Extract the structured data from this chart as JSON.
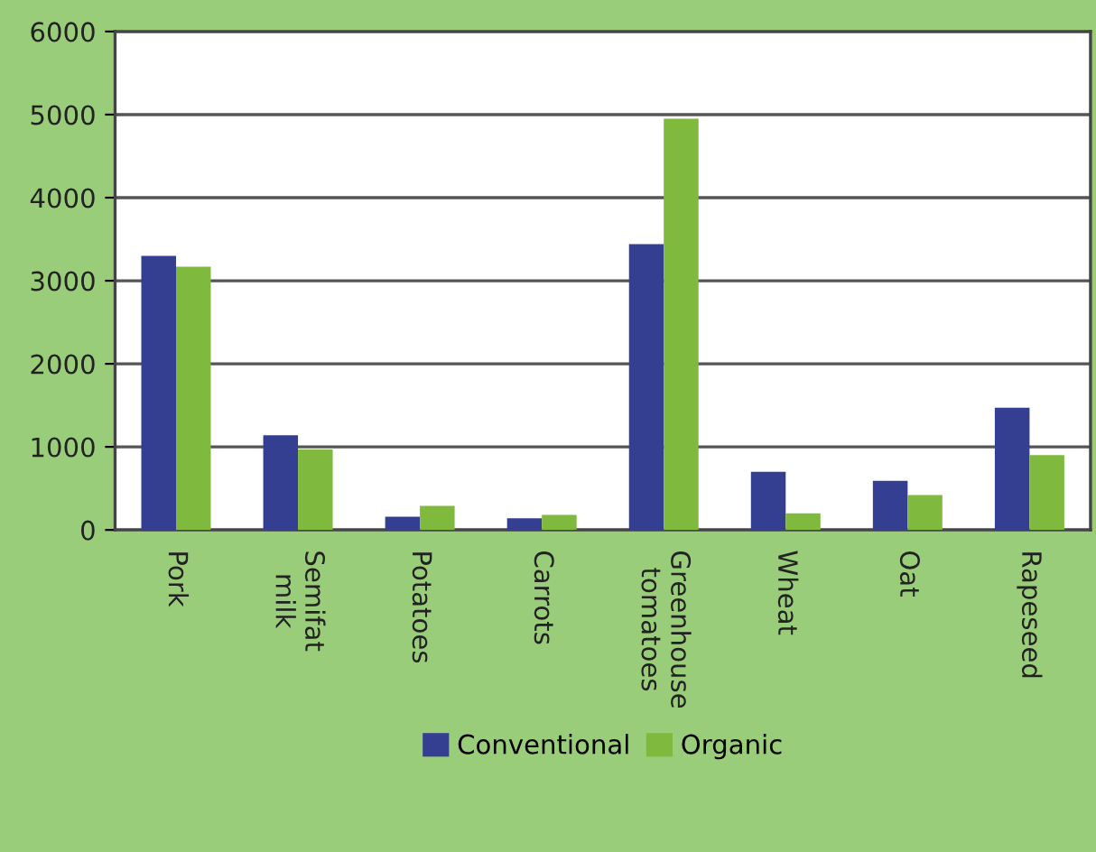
{
  "chart_data": {
    "type": "bar",
    "categories": [
      "Pork",
      "Semifat\nmilk",
      "Potatoes",
      "Carrots",
      "Greenhouse\ntomatoes",
      "Wheat",
      "Oat",
      "Rapeseed"
    ],
    "series": [
      {
        "name": "Conventional",
        "color": "#343f91",
        "values": [
          3300,
          1140,
          160,
          140,
          3440,
          700,
          590,
          1470
        ]
      },
      {
        "name": "Organic",
        "color": "#7fba3f",
        "values": [
          3170,
          970,
          290,
          180,
          4950,
          200,
          420,
          900
        ]
      }
    ],
    "ylim": [
      0,
      6000
    ],
    "yticks": [
      0,
      1000,
      2000,
      3000,
      4000,
      5000,
      6000
    ],
    "grid": "y",
    "legend": "bottom"
  }
}
